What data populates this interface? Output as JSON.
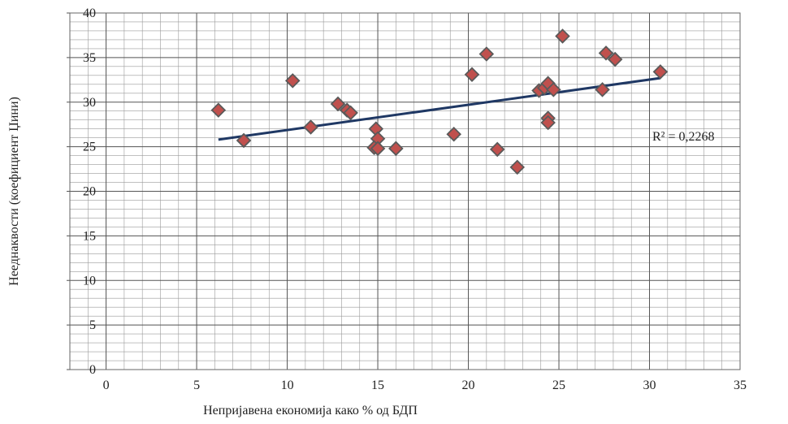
{
  "chart_data": {
    "type": "scatter",
    "title": "",
    "xlabel": "Непријавена економија како % од БДП",
    "ylabel": "Нееднаквости (коефициент Џини)",
    "xlim": [
      -2,
      35
    ],
    "ylim": [
      0,
      40
    ],
    "xticks": [
      0,
      5,
      10,
      15,
      20,
      25,
      30,
      35
    ],
    "yticks": [
      0,
      5,
      10,
      15,
      20,
      25,
      30,
      35,
      40
    ],
    "grid": true,
    "points": [
      {
        "x": 6.2,
        "y": 29.1
      },
      {
        "x": 7.6,
        "y": 25.7
      },
      {
        "x": 10.3,
        "y": 32.4
      },
      {
        "x": 11.3,
        "y": 27.2
      },
      {
        "x": 12.8,
        "y": 29.8
      },
      {
        "x": 13.3,
        "y": 29.1
      },
      {
        "x": 13.5,
        "y": 28.8
      },
      {
        "x": 14.9,
        "y": 27.0
      },
      {
        "x": 15.0,
        "y": 25.9
      },
      {
        "x": 14.8,
        "y": 24.9
      },
      {
        "x": 15.0,
        "y": 24.8
      },
      {
        "x": 16.0,
        "y": 24.8
      },
      {
        "x": 19.2,
        "y": 26.4
      },
      {
        "x": 20.2,
        "y": 33.1
      },
      {
        "x": 21.0,
        "y": 35.4
      },
      {
        "x": 21.6,
        "y": 24.7
      },
      {
        "x": 22.7,
        "y": 22.7
      },
      {
        "x": 23.9,
        "y": 31.3
      },
      {
        "x": 24.2,
        "y": 31.6
      },
      {
        "x": 24.4,
        "y": 32.1
      },
      {
        "x": 24.7,
        "y": 31.4
      },
      {
        "x": 24.4,
        "y": 28.2
      },
      {
        "x": 24.4,
        "y": 27.7
      },
      {
        "x": 25.2,
        "y": 37.4
      },
      {
        "x": 27.4,
        "y": 31.4
      },
      {
        "x": 27.6,
        "y": 35.5
      },
      {
        "x": 28.1,
        "y": 34.8
      },
      {
        "x": 30.6,
        "y": 33.4
      }
    ],
    "trendline": {
      "type": "linear",
      "x": [
        6.2,
        30.6
      ],
      "y": [
        25.8,
        32.7
      ]
    },
    "annotation": "R² = 0,2268",
    "colors": {
      "marker_fill": "#c0504d",
      "marker_stroke": "#5a5a5a",
      "trendline": "#1f3864",
      "grid": "#888888"
    }
  }
}
